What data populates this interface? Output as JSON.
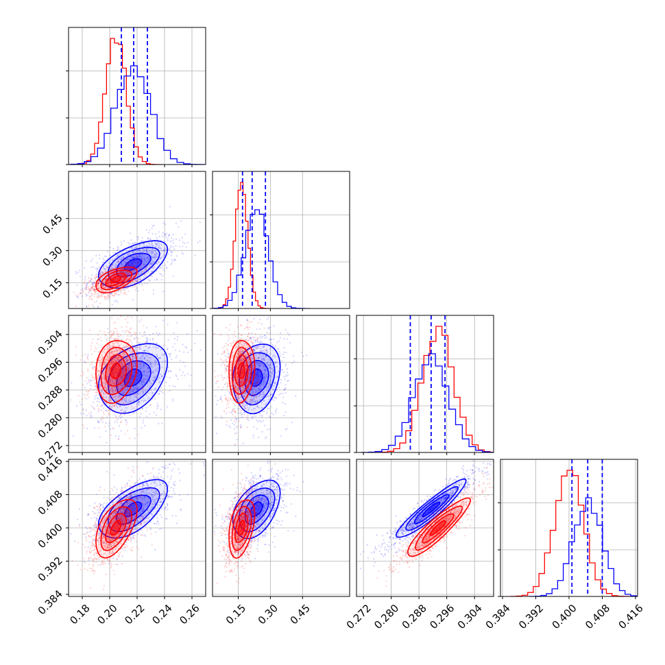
{
  "chart_data": {
    "type": "corner",
    "title": "",
    "grid": true,
    "legend": "none",
    "colors": {
      "series_a": "#0000ff",
      "series_b": "#ff0000"
    },
    "params": [
      {
        "axis_range": [
          0.17,
          0.27
        ],
        "ticks": [
          0.18,
          0.2,
          0.22,
          0.24,
          0.26
        ],
        "tick_labels": [
          "0.18",
          "0.20",
          "0.22",
          "0.24",
          "0.26"
        ]
      },
      {
        "axis_range": [
          0.03,
          0.67
        ],
        "ticks": [
          0.15,
          0.3,
          0.45
        ],
        "tick_labels": [
          "0.15",
          "0.30",
          "0.45"
        ]
      },
      {
        "axis_range": [
          0.27,
          0.3095
        ],
        "ticks": [
          0.272,
          0.28,
          0.288,
          0.296,
          0.304
        ],
        "tick_labels": [
          "0.272",
          "0.280",
          "0.288",
          "0.296",
          "0.304"
        ]
      },
      {
        "axis_range": [
          0.3835,
          0.4165
        ],
        "ticks": [
          0.384,
          0.392,
          0.4,
          0.408,
          0.416
        ],
        "tick_labels": [
          "0.384",
          "0.392",
          "0.400",
          "0.408",
          "0.416"
        ]
      }
    ],
    "series": [
      {
        "color": "#0000ff",
        "means": [
          0.217,
          0.235,
          0.2915,
          0.4045
        ],
        "sds": [
          0.0125,
          0.055,
          0.005,
          0.0035
        ],
        "quantiles": [
          [
            0.2085,
            0.2175,
            0.2275
          ],
          [
            0.17,
            0.215,
            0.277
          ],
          [
            0.2855,
            0.2915,
            0.2955
          ],
          [
            0.4007,
            0.4045,
            0.408
          ]
        ],
        "correlations": [
          [
            1,
            0.55,
            0.35,
            0.6
          ],
          [
            0.55,
            1,
            0.2,
            0.45
          ],
          [
            0.35,
            0.2,
            1,
            0.93
          ],
          [
            0.6,
            0.45,
            0.93,
            1
          ]
        ]
      },
      {
        "color": "#ff0000",
        "means": [
          0.2045,
          0.165,
          0.2935,
          0.4
        ],
        "sds": [
          0.0075,
          0.03,
          0.0045,
          0.0035
        ],
        "quantiles": null,
        "correlations": [
          [
            1,
            0.55,
            0.15,
            0.55
          ],
          [
            0.55,
            1,
            0.1,
            0.4
          ],
          [
            0.15,
            0.1,
            1,
            0.9
          ],
          [
            0.55,
            0.4,
            0.9,
            1
          ]
        ]
      }
    ]
  }
}
